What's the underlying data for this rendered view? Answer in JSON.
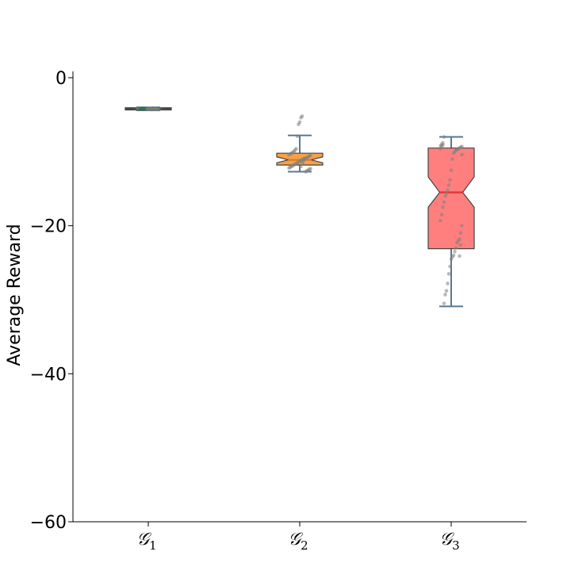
{
  "chart_data": {
    "type": "boxplot",
    "title": "",
    "xlabel": "",
    "ylabel": "Average Reward",
    "ylim": [
      -60,
      1
    ],
    "yticks": [
      0,
      -20,
      -40,
      -60
    ],
    "ytick_labels": [
      "0",
      "−20",
      "−40",
      "−60"
    ],
    "grid": false,
    "notched": true,
    "categories": [
      {
        "base": "𝒢",
        "sub": "1"
      },
      {
        "base": "𝒢",
        "sub": "2"
      },
      {
        "base": "𝒢",
        "sub": "3"
      }
    ],
    "series": [
      {
        "color": "#4caf3a",
        "median_color": "#2e7d32",
        "whisker_low": -4.4,
        "q1": -4.35,
        "median": -4.2,
        "q3": -4.05,
        "whisker_high": -4.0,
        "notch_low": -4.25,
        "notch_high": -4.15,
        "points": [
          -4.1,
          -4.2,
          -4.3,
          -4.15,
          -4.25,
          -4.2,
          -4.1,
          -4.3,
          -4.2,
          -4.15,
          -4.25,
          -4.2
        ]
      },
      {
        "color": "#f5a04a",
        "median_color": "#d9822b",
        "whisker_low": -12.7,
        "q1": -11.8,
        "median": -11.1,
        "q3": -10.2,
        "whisker_high": -7.8,
        "notch_low": -11.5,
        "notch_high": -10.7,
        "points": [
          -5.2,
          -5.4,
          -6.0,
          -6.3,
          -7.9,
          -9.6,
          -9.8,
          -10.0,
          -10.1,
          -10.2,
          -10.3,
          -10.4,
          -10.5,
          -10.6,
          -10.7,
          -10.8,
          -10.9,
          -11.0,
          -11.0,
          -11.1,
          -11.2,
          -11.3,
          -11.4,
          -11.5,
          -11.6,
          -11.7,
          -11.8,
          -11.9,
          -12.0,
          -12.1,
          -12.2,
          -12.3,
          -12.4,
          -12.5,
          -12.6,
          -12.7,
          -10.9,
          -11.3,
          -11.6,
          -12.0
        ]
      },
      {
        "color": "#ff7f7f",
        "median_color": "#e53935",
        "whisker_low": -30.9,
        "q1": -23.1,
        "median": -15.5,
        "q3": -9.5,
        "whisker_high": -8.0,
        "notch_low": -17.5,
        "notch_high": -13.4,
        "points": [
          -8.0,
          -8.8,
          -9.0,
          -9.2,
          -9.3,
          -9.4,
          -9.5,
          -9.6,
          -9.7,
          -9.8,
          -10.0,
          -10.2,
          -11.0,
          -12.5,
          -13.8,
          -14.5,
          -15.2,
          -15.6,
          -16.0,
          -16.8,
          -17.5,
          -18.5,
          -19.3,
          -20.0,
          -21.0,
          -21.8,
          -22.0,
          -22.3,
          -23.0,
          -23.5,
          -24.0,
          -24.2,
          -24.5,
          -25.5,
          -26.5,
          -27.8,
          -28.8,
          -29.3,
          -30.5,
          -9.1,
          -9.3,
          -9.6,
          -10.4,
          -22.6,
          -24.1
        ]
      }
    ]
  }
}
